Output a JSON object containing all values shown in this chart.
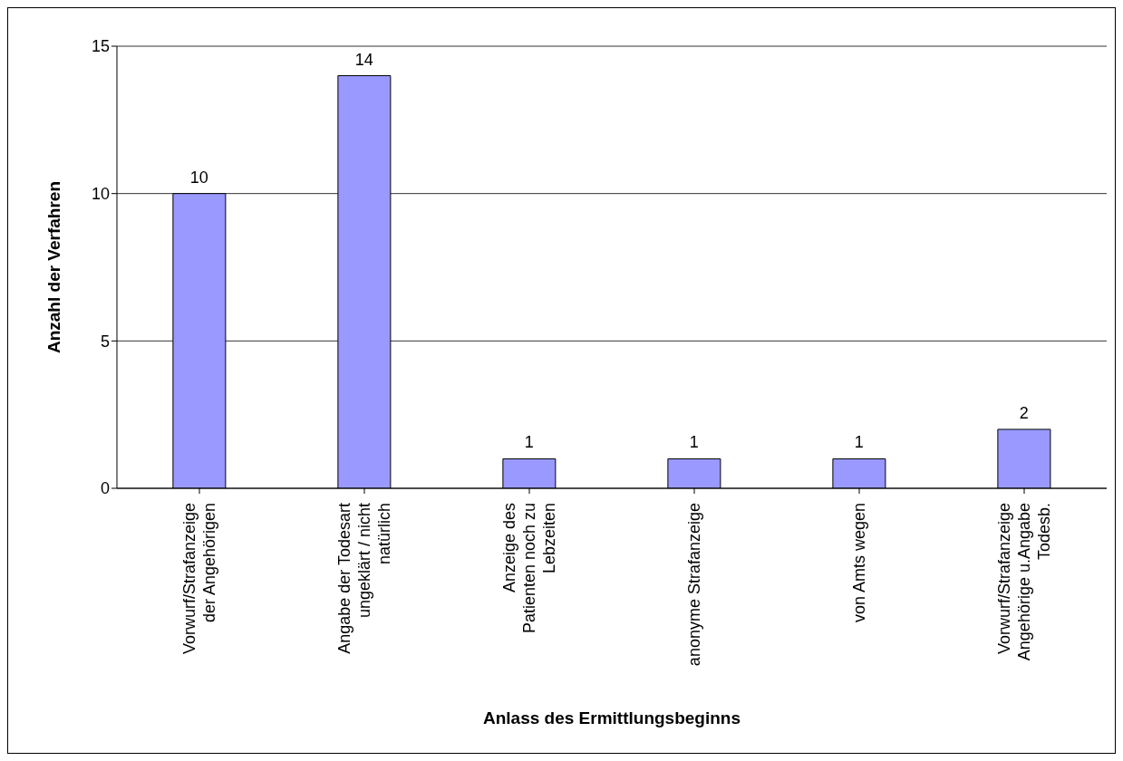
{
  "chart_data": {
    "type": "bar",
    "xlabel": "Anlass des Ermittlungsbeginns",
    "ylabel": "Anzahl der Verfahren",
    "categories": [
      "Vorwurf/Strafanzeige der Angehörigen",
      "Angabe der Todesart ungeklärt / nicht natürlich",
      "Anzeige des Patienten noch zu Lebzeiten",
      "anonyme Strafanzeige",
      "von Amts wegen",
      "Vorwurf/Strafanzeige Angehörige u.Angabe Todesb."
    ],
    "values": [
      10,
      14,
      1,
      1,
      1,
      2
    ],
    "color": "#9999ff",
    "ylim": [
      0,
      15
    ],
    "yticks": [
      0,
      5,
      10,
      15
    ],
    "grid": "y",
    "data_labels": true
  }
}
